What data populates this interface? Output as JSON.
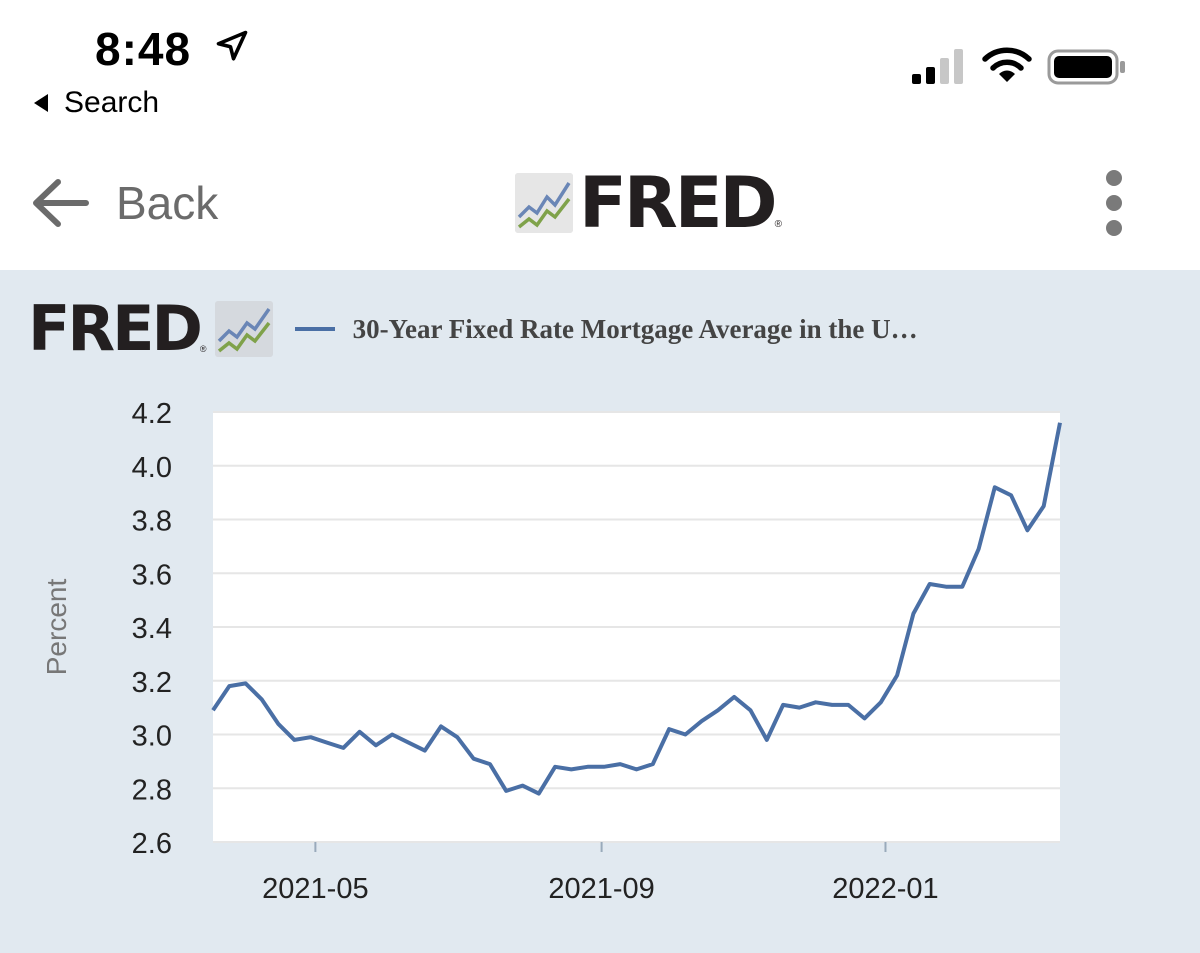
{
  "status_bar": {
    "time": "8:48",
    "back_app_label": "Search",
    "icons": [
      "location-arrow-icon",
      "cellular-signal-icon",
      "wifi-icon",
      "battery-icon"
    ]
  },
  "nav": {
    "back_label": "Back",
    "logo_text": "FRED",
    "reg_mark": "®",
    "more_icon": "more-vertical-icon"
  },
  "chart_header": {
    "logo_text": "FRED",
    "reg_mark": "®",
    "series_title": "30-Year Fixed Rate Mortgage Average in the U…"
  },
  "colors": {
    "series": "#4a6fa5",
    "panel_bg": "#e1e9f0",
    "grid": "#e6e6e6"
  },
  "chart_data": {
    "type": "line",
    "title": "30-Year Fixed Rate Mortgage Average in the U…",
    "xlabel": "",
    "ylabel": "Percent",
    "ylim": [
      2.6,
      4.2
    ],
    "yticks": [
      "4.2",
      "4.0",
      "3.8",
      "3.6",
      "3.4",
      "3.2",
      "3.0",
      "2.8",
      "2.6"
    ],
    "xticks": [
      "2021-05",
      "2021-09",
      "2022-01"
    ],
    "grid": true,
    "series": [
      {
        "name": "30-Year Fixed Rate Mortgage Average in the U…",
        "x_start": "2021-03-18",
        "step_days": 7,
        "values": [
          3.09,
          3.18,
          3.19,
          3.13,
          3.04,
          2.98,
          2.99,
          2.97,
          2.95,
          3.01,
          2.96,
          3.0,
          2.97,
          2.94,
          3.03,
          2.99,
          2.91,
          2.89,
          2.79,
          2.81,
          2.78,
          2.88,
          2.87,
          2.88,
          2.88,
          2.89,
          2.87,
          2.89,
          3.02,
          3.0,
          3.05,
          3.09,
          3.14,
          3.09,
          2.98,
          3.11,
          3.1,
          3.12,
          3.11,
          3.11,
          3.06,
          3.12,
          3.22,
          3.45,
          3.56,
          3.55,
          3.55,
          3.69,
          3.92,
          3.89,
          3.76,
          3.85,
          4.16
        ]
      }
    ]
  }
}
